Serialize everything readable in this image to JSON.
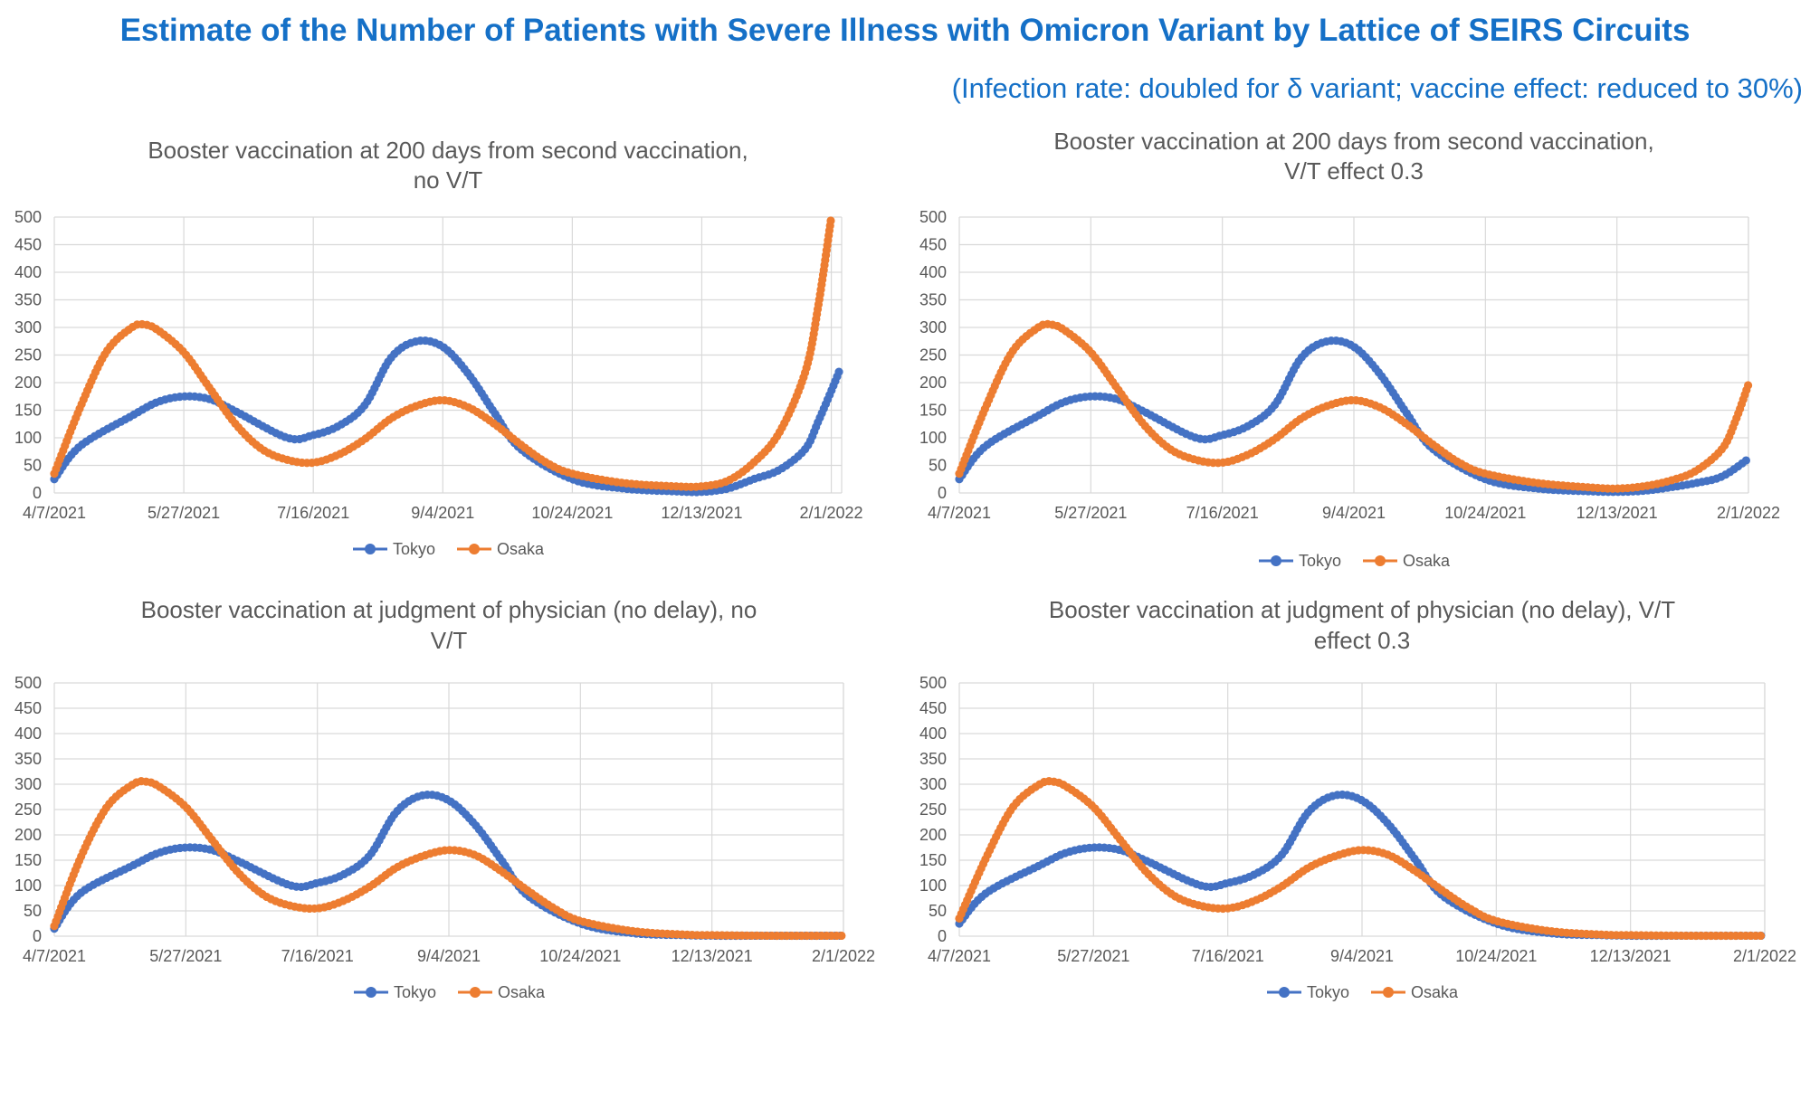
{
  "title": "Estimate of the Number of Patients with Severe Illness with Omicron Variant by Lattice of SEIRS Circuits",
  "subtitle": "(Infection rate: doubled for δ variant; vaccine effect: reduced to 30%)",
  "colors": {
    "title": "#1570c7",
    "tokyo": "#4472c4",
    "osaka": "#ed7d31",
    "grid": "#d9d9d9",
    "axis_text": "#595959"
  },
  "chart_data": [
    {
      "type": "line",
      "title_lines": [
        "Booster vaccination at 200 days from second vaccination,",
        "no V/T"
      ],
      "x_ticks": [
        "4/7/2021",
        "5/27/2021",
        "7/16/2021",
        "9/4/2021",
        "10/24/2021",
        "12/13/2021",
        "2/1/2022"
      ],
      "x_range": [
        "4/7/2021",
        "2/5/2022"
      ],
      "ylim": [
        0,
        500
      ],
      "y_ticks": [
        0,
        50,
        100,
        150,
        200,
        250,
        300,
        350,
        400,
        450,
        500
      ],
      "grid": true,
      "legend_position": "bottom",
      "series": [
        {
          "name": "Tokyo",
          "color": "#4472c4",
          "points": [
            [
              "4/7/2021",
              25
            ],
            [
              "4/17/2021",
              85
            ],
            [
              "5/7/2021",
              140
            ],
            [
              "5/17/2021",
              165
            ],
            [
              "5/27/2021",
              175
            ],
            [
              "6/6/2021",
              170
            ],
            [
              "6/16/2021",
              148
            ],
            [
              "7/6/2021",
              100
            ],
            [
              "7/16/2021",
              105
            ],
            [
              "7/26/2021",
              122
            ],
            [
              "8/5/2021",
              160
            ],
            [
              "8/15/2021",
              245
            ],
            [
              "8/25/2021",
              275
            ],
            [
              "9/4/2021",
              265
            ],
            [
              "9/14/2021",
              215
            ],
            [
              "9/24/2021",
              145
            ],
            [
              "10/4/2021",
              80
            ],
            [
              "10/24/2021",
              25
            ],
            [
              "11/13/2021",
              8
            ],
            [
              "12/3/2021",
              3
            ],
            [
              "12/13/2021",
              2
            ],
            [
              "12/23/2021",
              8
            ],
            [
              "1/2/2022",
              25
            ],
            [
              "1/12/2022",
              42
            ],
            [
              "1/22/2022",
              80
            ],
            [
              "1/27/2022",
              130
            ],
            [
              "2/1/2022",
              185
            ],
            [
              "2/4/2022",
              220
            ]
          ]
        },
        {
          "name": "Osaka",
          "color": "#ed7d31",
          "points": [
            [
              "4/7/2021",
              35
            ],
            [
              "4/17/2021",
              155
            ],
            [
              "4/27/2021",
              255
            ],
            [
              "5/7/2021",
              300
            ],
            [
              "5/12/2021",
              305
            ],
            [
              "5/17/2021",
              295
            ],
            [
              "5/27/2021",
              255
            ],
            [
              "6/6/2021",
              190
            ],
            [
              "6/16/2021",
              125
            ],
            [
              "6/26/2021",
              80
            ],
            [
              "7/6/2021",
              60
            ],
            [
              "7/16/2021",
              55
            ],
            [
              "7/26/2021",
              70
            ],
            [
              "8/5/2021",
              98
            ],
            [
              "8/15/2021",
              135
            ],
            [
              "8/25/2021",
              158
            ],
            [
              "9/4/2021",
              168
            ],
            [
              "9/14/2021",
              155
            ],
            [
              "9/24/2021",
              125
            ],
            [
              "10/4/2021",
              88
            ],
            [
              "10/14/2021",
              55
            ],
            [
              "10/24/2021",
              35
            ],
            [
              "11/13/2021",
              18
            ],
            [
              "12/3/2021",
              12
            ],
            [
              "12/13/2021",
              12
            ],
            [
              "12/23/2021",
              22
            ],
            [
              "1/2/2022",
              55
            ],
            [
              "1/12/2022",
              110
            ],
            [
              "1/22/2022",
              220
            ],
            [
              "1/27/2022",
              340
            ],
            [
              "2/1/2022",
              500
            ]
          ]
        }
      ]
    },
    {
      "type": "line",
      "title_lines": [
        "Booster vaccination at 200 days from second vaccination,",
        "V/T effect 0.3"
      ],
      "x_ticks": [
        "4/7/2021",
        "5/27/2021",
        "7/16/2021",
        "9/4/2021",
        "10/24/2021",
        "12/13/2021",
        "2/1/2022"
      ],
      "x_range": [
        "4/7/2021",
        "2/1/2022"
      ],
      "ylim": [
        0,
        500
      ],
      "y_ticks": [
        0,
        50,
        100,
        150,
        200,
        250,
        300,
        350,
        400,
        450,
        500
      ],
      "grid": true,
      "legend_position": "bottom",
      "series": [
        {
          "name": "Tokyo",
          "color": "#4472c4",
          "points": [
            [
              "4/7/2021",
              25
            ],
            [
              "4/17/2021",
              85
            ],
            [
              "5/7/2021",
              140
            ],
            [
              "5/17/2021",
              165
            ],
            [
              "5/27/2021",
              175
            ],
            [
              "6/6/2021",
              170
            ],
            [
              "6/16/2021",
              148
            ],
            [
              "7/6/2021",
              100
            ],
            [
              "7/16/2021",
              105
            ],
            [
              "7/26/2021",
              122
            ],
            [
              "8/5/2021",
              160
            ],
            [
              "8/15/2021",
              245
            ],
            [
              "8/25/2021",
              275
            ],
            [
              "9/4/2021",
              265
            ],
            [
              "9/14/2021",
              215
            ],
            [
              "9/24/2021",
              145
            ],
            [
              "10/4/2021",
              80
            ],
            [
              "10/24/2021",
              25
            ],
            [
              "11/13/2021",
              8
            ],
            [
              "12/3/2021",
              3
            ],
            [
              "12/13/2021",
              2
            ],
            [
              "12/23/2021",
              4
            ],
            [
              "1/2/2022",
              10
            ],
            [
              "1/12/2022",
              18
            ],
            [
              "1/22/2022",
              30
            ],
            [
              "2/1/2022",
              62
            ]
          ]
        },
        {
          "name": "Osaka",
          "color": "#ed7d31",
          "points": [
            [
              "4/7/2021",
              35
            ],
            [
              "4/17/2021",
              155
            ],
            [
              "4/27/2021",
              255
            ],
            [
              "5/7/2021",
              300
            ],
            [
              "5/12/2021",
              305
            ],
            [
              "5/17/2021",
              295
            ],
            [
              "5/27/2021",
              255
            ],
            [
              "6/6/2021",
              190
            ],
            [
              "6/16/2021",
              125
            ],
            [
              "6/26/2021",
              80
            ],
            [
              "7/6/2021",
              60
            ],
            [
              "7/16/2021",
              55
            ],
            [
              "7/26/2021",
              70
            ],
            [
              "8/5/2021",
              98
            ],
            [
              "8/15/2021",
              135
            ],
            [
              "8/25/2021",
              158
            ],
            [
              "9/4/2021",
              168
            ],
            [
              "9/14/2021",
              155
            ],
            [
              "9/24/2021",
              125
            ],
            [
              "10/4/2021",
              88
            ],
            [
              "10/14/2021",
              55
            ],
            [
              "10/24/2021",
              35
            ],
            [
              "11/13/2021",
              18
            ],
            [
              "12/3/2021",
              10
            ],
            [
              "12/13/2021",
              8
            ],
            [
              "12/23/2021",
              12
            ],
            [
              "1/2/2022",
              22
            ],
            [
              "1/12/2022",
              40
            ],
            [
              "1/22/2022",
              80
            ],
            [
              "1/27/2022",
              130
            ],
            [
              "2/1/2022",
              197
            ]
          ]
        }
      ]
    },
    {
      "type": "line",
      "title_lines": [
        "Booster vaccination at judgment of physician (no delay), no",
        "V/T"
      ],
      "x_ticks": [
        "4/7/2021",
        "5/27/2021",
        "7/16/2021",
        "9/4/2021",
        "10/24/2021",
        "12/13/2021",
        "2/1/2022"
      ],
      "x_range": [
        "4/7/2021",
        "2/1/2022"
      ],
      "ylim": [
        0,
        500
      ],
      "y_ticks": [
        0,
        50,
        100,
        150,
        200,
        250,
        300,
        350,
        400,
        450,
        500
      ],
      "grid": true,
      "legend_position": "bottom",
      "series": [
        {
          "name": "Tokyo",
          "color": "#4472c4",
          "points": [
            [
              "4/7/2021",
              15
            ],
            [
              "4/17/2021",
              85
            ],
            [
              "5/7/2021",
              140
            ],
            [
              "5/17/2021",
              165
            ],
            [
              "5/27/2021",
              175
            ],
            [
              "6/6/2021",
              170
            ],
            [
              "6/16/2021",
              148
            ],
            [
              "7/6/2021",
              100
            ],
            [
              "7/16/2021",
              105
            ],
            [
              "7/26/2021",
              122
            ],
            [
              "8/5/2021",
              160
            ],
            [
              "8/15/2021",
              245
            ],
            [
              "8/25/2021",
              278
            ],
            [
              "9/4/2021",
              268
            ],
            [
              "9/14/2021",
              220
            ],
            [
              "9/24/2021",
              150
            ],
            [
              "10/4/2021",
              80
            ],
            [
              "10/24/2021",
              25
            ],
            [
              "11/13/2021",
              6
            ],
            [
              "12/3/2021",
              2
            ],
            [
              "12/13/2021",
              1
            ],
            [
              "1/2/2022",
              1
            ],
            [
              "2/1/2022",
              1
            ]
          ]
        },
        {
          "name": "Osaka",
          "color": "#ed7d31",
          "points": [
            [
              "4/7/2021",
              20
            ],
            [
              "4/17/2021",
              155
            ],
            [
              "4/27/2021",
              255
            ],
            [
              "5/7/2021",
              300
            ],
            [
              "5/12/2021",
              305
            ],
            [
              "5/17/2021",
              295
            ],
            [
              "5/27/2021",
              255
            ],
            [
              "6/6/2021",
              190
            ],
            [
              "6/16/2021",
              125
            ],
            [
              "6/26/2021",
              80
            ],
            [
              "7/6/2021",
              60
            ],
            [
              "7/16/2021",
              55
            ],
            [
              "7/26/2021",
              70
            ],
            [
              "8/5/2021",
              98
            ],
            [
              "8/15/2021",
              135
            ],
            [
              "8/25/2021",
              158
            ],
            [
              "9/4/2021",
              170
            ],
            [
              "9/14/2021",
              160
            ],
            [
              "9/24/2021",
              128
            ],
            [
              "10/4/2021",
              90
            ],
            [
              "10/14/2021",
              55
            ],
            [
              "10/24/2021",
              30
            ],
            [
              "11/13/2021",
              10
            ],
            [
              "12/3/2021",
              3
            ],
            [
              "12/13/2021",
              2
            ],
            [
              "1/2/2022",
              1
            ],
            [
              "2/1/2022",
              1
            ]
          ]
        }
      ]
    },
    {
      "type": "line",
      "title_lines": [
        "Booster vaccination at judgment of physician (no delay), V/T",
        "effect 0.3"
      ],
      "x_ticks": [
        "4/7/2021",
        "5/27/2021",
        "7/16/2021",
        "9/4/2021",
        "10/24/2021",
        "12/13/2021",
        "2/1/2022"
      ],
      "x_range": [
        "4/7/2021",
        "2/1/2022"
      ],
      "ylim": [
        0,
        500
      ],
      "y_ticks": [
        0,
        50,
        100,
        150,
        200,
        250,
        300,
        350,
        400,
        450,
        500
      ],
      "grid": true,
      "legend_position": "bottom",
      "series": [
        {
          "name": "Tokyo",
          "color": "#4472c4",
          "points": [
            [
              "4/7/2021",
              25
            ],
            [
              "4/17/2021",
              85
            ],
            [
              "5/7/2021",
              140
            ],
            [
              "5/17/2021",
              165
            ],
            [
              "5/27/2021",
              175
            ],
            [
              "6/6/2021",
              170
            ],
            [
              "6/16/2021",
              148
            ],
            [
              "7/6/2021",
              100
            ],
            [
              "7/16/2021",
              105
            ],
            [
              "7/26/2021",
              122
            ],
            [
              "8/5/2021",
              160
            ],
            [
              "8/15/2021",
              245
            ],
            [
              "8/25/2021",
              278
            ],
            [
              "9/4/2021",
              268
            ],
            [
              "9/14/2021",
              220
            ],
            [
              "9/24/2021",
              150
            ],
            [
              "10/4/2021",
              80
            ],
            [
              "10/24/2021",
              25
            ],
            [
              "11/13/2021",
              6
            ],
            [
              "12/3/2021",
              2
            ],
            [
              "12/13/2021",
              1
            ],
            [
              "1/2/2022",
              1
            ],
            [
              "2/1/2022",
              1
            ]
          ]
        },
        {
          "name": "Osaka",
          "color": "#ed7d31",
          "points": [
            [
              "4/7/2021",
              35
            ],
            [
              "4/17/2021",
              155
            ],
            [
              "4/27/2021",
              255
            ],
            [
              "5/7/2021",
              300
            ],
            [
              "5/12/2021",
              305
            ],
            [
              "5/17/2021",
              295
            ],
            [
              "5/27/2021",
              255
            ],
            [
              "6/6/2021",
              190
            ],
            [
              "6/16/2021",
              125
            ],
            [
              "6/26/2021",
              80
            ],
            [
              "7/6/2021",
              60
            ],
            [
              "7/16/2021",
              55
            ],
            [
              "7/26/2021",
              70
            ],
            [
              "8/5/2021",
              98
            ],
            [
              "8/15/2021",
              135
            ],
            [
              "8/25/2021",
              158
            ],
            [
              "9/4/2021",
              170
            ],
            [
              "9/14/2021",
              160
            ],
            [
              "9/24/2021",
              128
            ],
            [
              "10/4/2021",
              90
            ],
            [
              "10/14/2021",
              55
            ],
            [
              "10/24/2021",
              30
            ],
            [
              "11/13/2021",
              10
            ],
            [
              "12/3/2021",
              3
            ],
            [
              "12/13/2021",
              2
            ],
            [
              "1/2/2022",
              1
            ],
            [
              "2/1/2022",
              1
            ]
          ]
        }
      ]
    }
  ]
}
